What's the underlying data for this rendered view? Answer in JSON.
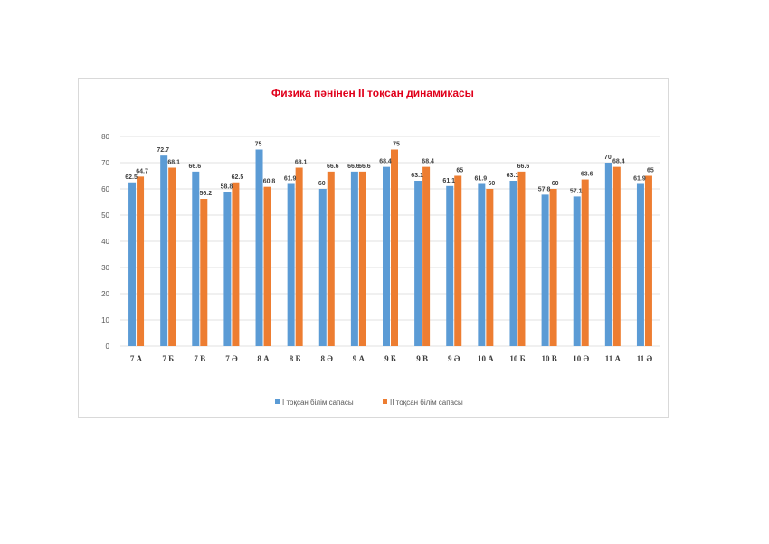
{
  "chart_data": {
    "type": "bar",
    "title": "Физика пәнінен II тоқсан динамикасы",
    "categories": [
      "7 А",
      "7 Б",
      "7 В",
      "7 Ә",
      "8 А",
      "8 Б",
      "8 Ә",
      "9 А",
      "9 Б",
      "9 В",
      "9 Ә",
      "10 А",
      "10 Б",
      "10 В",
      "10 Ә",
      "11 А",
      "11 Ә"
    ],
    "series": [
      {
        "name": "I тоқсан білім сапасы",
        "color": "#5b9bd5",
        "values": [
          62.5,
          72.7,
          66.6,
          58.8,
          75,
          61.9,
          60,
          66.6,
          68.4,
          63.1,
          61.1,
          61.9,
          63.1,
          57.8,
          57.1,
          70,
          61.9
        ]
      },
      {
        "name": "II тоқсан білім сапасы",
        "color": "#ed7d31",
        "values": [
          64.7,
          68.1,
          56.2,
          62.5,
          60.8,
          68.1,
          66.6,
          66.6,
          75,
          68.4,
          65,
          60,
          66.6,
          60,
          63.6,
          68.4,
          65
        ]
      }
    ],
    "ylim": [
      0,
      80
    ],
    "yticks": [
      0,
      10,
      20,
      30,
      40,
      50,
      60,
      70,
      80
    ],
    "grid": true,
    "legend": "bottom",
    "data_labels": true
  }
}
